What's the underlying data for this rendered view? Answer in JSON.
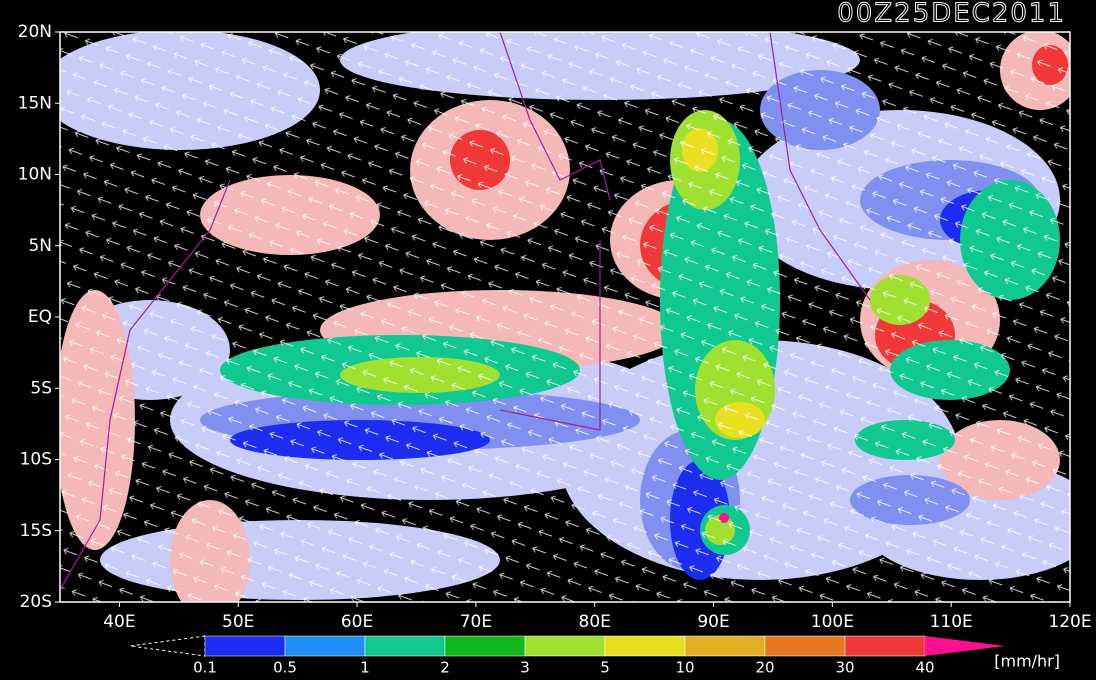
{
  "title": "00Z25DEC2011",
  "lat_labels": [
    "20N",
    "15N",
    "10N",
    "5N",
    "EQ",
    "5S",
    "10S",
    "15S",
    "20S"
  ],
  "lon_labels": [
    "40E",
    "50E",
    "60E",
    "70E",
    "80E",
    "90E",
    "100E",
    "110E",
    "120E"
  ],
  "colorbar": {
    "labels": [
      "0.1",
      "0.5",
      "1",
      "2",
      "3",
      "5",
      "10",
      "20",
      "30",
      "40"
    ],
    "colors": [
      "#1c2cf0",
      "#2090f8",
      "#10c890",
      "#10b820",
      "#a0e030",
      "#e8e020",
      "#e0b020",
      "#e87820",
      "#f03838"
    ],
    "over_color": "#ff1090",
    "unit": "[mm/hr]"
  }
}
